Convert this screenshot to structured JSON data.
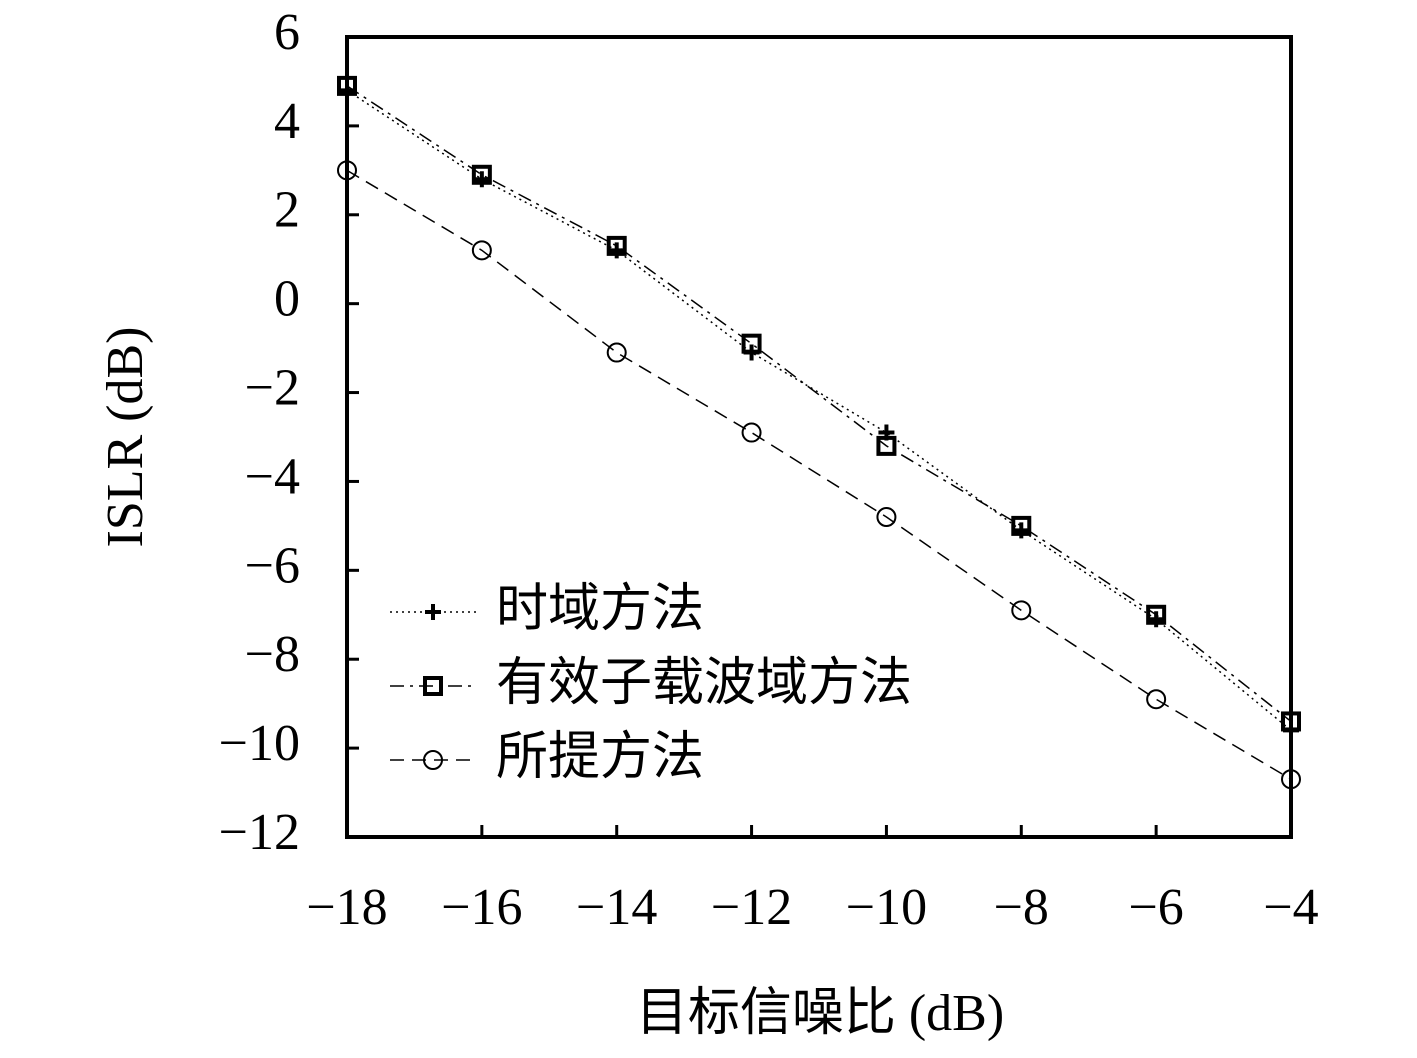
{
  "chart_data": {
    "type": "line",
    "x_label": "目标信噪比 (dB)",
    "y_label": "ISLR (dB)",
    "x": [
      -18,
      -16,
      -14,
      -12,
      -10,
      -8,
      -6,
      -4
    ],
    "series": [
      {
        "name": "时域方法",
        "color": "#000000",
        "marker": "plus",
        "line_style": "dotted",
        "values": [
          4.8,
          2.8,
          1.2,
          -1.1,
          -2.9,
          -5.1,
          -7.1,
          -9.6
        ]
      },
      {
        "name": "有效子载波域方法",
        "color": "#000000",
        "marker": "square",
        "line_style": "dashdot",
        "values": [
          4.9,
          2.9,
          1.3,
          -0.9,
          -3.2,
          -5.0,
          -7.0,
          -9.4
        ]
      },
      {
        "name": "所提方法",
        "color": "#000000",
        "marker": "circle",
        "line_style": "dashed",
        "values": [
          3.0,
          1.2,
          -1.1,
          -2.9,
          -4.8,
          -6.9,
          -8.9,
          -10.7
        ]
      }
    ],
    "xlim": [
      -18,
      -4
    ],
    "xticks": [
      {
        "value": -18,
        "label": "−18"
      },
      {
        "value": -16,
        "label": "−16"
      },
      {
        "value": -14,
        "label": "−14"
      },
      {
        "value": -12,
        "label": "−12"
      },
      {
        "value": -10,
        "label": "−10"
      },
      {
        "value": -8,
        "label": "−8"
      },
      {
        "value": -6,
        "label": "−6"
      },
      {
        "value": -4,
        "label": "−4"
      }
    ],
    "ylim": [
      -12,
      6
    ],
    "yticks": [
      6,
      4,
      2,
      0,
      {
        "value": -2,
        "label": "−2"
      },
      {
        "value": -4,
        "label": "−4"
      },
      {
        "value": -6,
        "label": "−6"
      },
      {
        "value": -8,
        "label": "−8"
      },
      {
        "value": -10,
        "label": "−10"
      },
      {
        "value": -12,
        "label": "−12"
      }
    ],
    "grid": false,
    "legend": "lower left"
  }
}
